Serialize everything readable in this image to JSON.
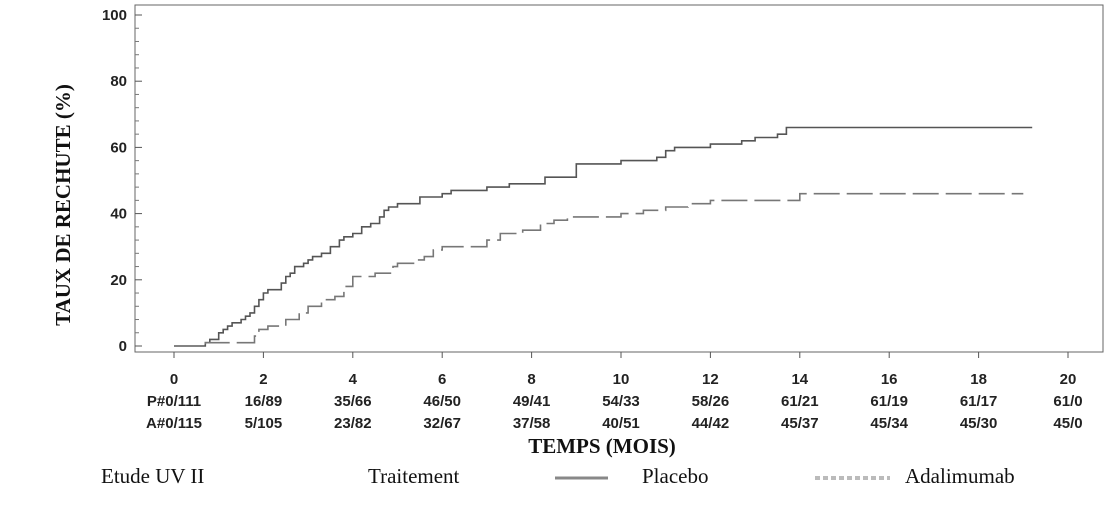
{
  "chart_data": {
    "type": "line",
    "title": "",
    "xlabel": "TEMPS (MOIS)",
    "ylabel": "TAUX DE RECHUTE (%)",
    "xlim": [
      0,
      20
    ],
    "ylim": [
      0,
      100
    ],
    "x_ticks": [
      0,
      2,
      4,
      6,
      8,
      10,
      12,
      14,
      16,
      18,
      20
    ],
    "y_ticks": [
      0,
      20,
      40,
      60,
      80,
      100
    ],
    "grid": false,
    "series": [
      {
        "name": "Placebo",
        "style": "solid",
        "color": "#555555",
        "x": [
          0,
          0.7,
          0.8,
          1.0,
          1.1,
          1.2,
          1.3,
          1.5,
          1.6,
          1.7,
          1.8,
          1.9,
          2.0,
          2.1,
          2.4,
          2.5,
          2.6,
          2.7,
          2.9,
          3.0,
          3.1,
          3.3,
          3.5,
          3.7,
          3.8,
          4.0,
          4.2,
          4.4,
          4.6,
          4.7,
          4.8,
          5.0,
          5.5,
          6.0,
          6.2,
          7.0,
          7.5,
          8.3,
          9.0,
          10.0,
          10.8,
          11.0,
          11.2,
          12.0,
          12.7,
          13.0,
          13.5,
          13.7,
          19.2
        ],
        "y": [
          0,
          1,
          2,
          4,
          5,
          6,
          7,
          8,
          9,
          10,
          12,
          14,
          16,
          17,
          19,
          21,
          22,
          24,
          25,
          26,
          27,
          28,
          30,
          32,
          33,
          34,
          36,
          37,
          39,
          41,
          42,
          43,
          45,
          46,
          47,
          48,
          49,
          51,
          55,
          56,
          57,
          59,
          60,
          61,
          62,
          63,
          64,
          66,
          66
        ]
      },
      {
        "name": "Adalimumab",
        "style": "dashed",
        "color": "#777777",
        "x": [
          0,
          0.7,
          1.0,
          1.8,
          1.9,
          2.1,
          2.5,
          2.8,
          3.0,
          3.3,
          3.6,
          3.8,
          4.0,
          4.5,
          4.9,
          5.0,
          5.4,
          5.6,
          5.8,
          6.0,
          6.5,
          7.0,
          7.3,
          7.8,
          8.2,
          8.5,
          8.8,
          9.0,
          10.0,
          10.5,
          11.0,
          11.5,
          12.0,
          13.5,
          14.0,
          19.0
        ],
        "y": [
          0,
          1,
          1,
          3,
          5,
          6,
          8,
          10,
          12,
          14,
          15,
          18,
          21,
          22,
          24,
          25,
          26,
          27,
          29,
          30,
          30,
          32,
          34,
          35,
          37,
          38,
          39,
          39,
          40,
          41,
          42,
          43,
          44,
          44,
          46,
          46
        ]
      }
    ],
    "risk_table": {
      "rows": [
        {
          "label": "P#0/111",
          "values": [
            "16/89",
            "35/66",
            "46/50",
            "49/41",
            "54/33",
            "58/26",
            "61/21",
            "61/19",
            "61/17",
            "61/0"
          ]
        },
        {
          "label": "A#0/115",
          "values": [
            "5/105",
            "23/82",
            "32/67",
            "37/58",
            "40/51",
            "44/42",
            "45/37",
            "45/34",
            "45/30",
            "45/0"
          ]
        }
      ]
    },
    "legend": {
      "placement": "bottom",
      "study": "Etude UV II",
      "group_title": "Traitement",
      "items": [
        {
          "name": "Placebo",
          "style": "solid"
        },
        {
          "name": "Adalimumab",
          "style": "dashed"
        }
      ]
    }
  }
}
